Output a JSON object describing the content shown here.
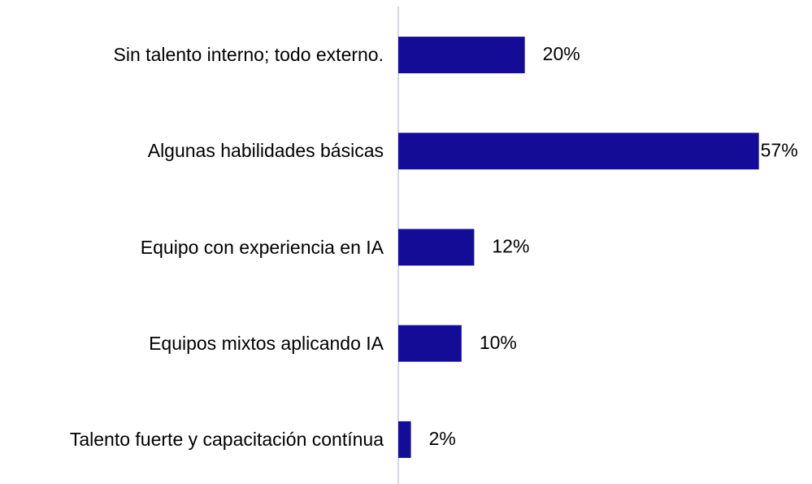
{
  "chart_data": {
    "type": "bar",
    "orientation": "horizontal",
    "categories": [
      "Sin talento interno; todo externo.",
      "Algunas habilidades básicas",
      "Equipo con experiencia en IA",
      "Equipos mixtos aplicando IA",
      "Talento fuerte y capacitación contínua"
    ],
    "values": [
      20,
      57,
      12,
      10,
      2
    ],
    "value_labels": [
      "20%",
      "57%",
      "12%",
      "10%",
      "2%"
    ],
    "color": "#140c96",
    "xlim": [
      0,
      60
    ]
  }
}
